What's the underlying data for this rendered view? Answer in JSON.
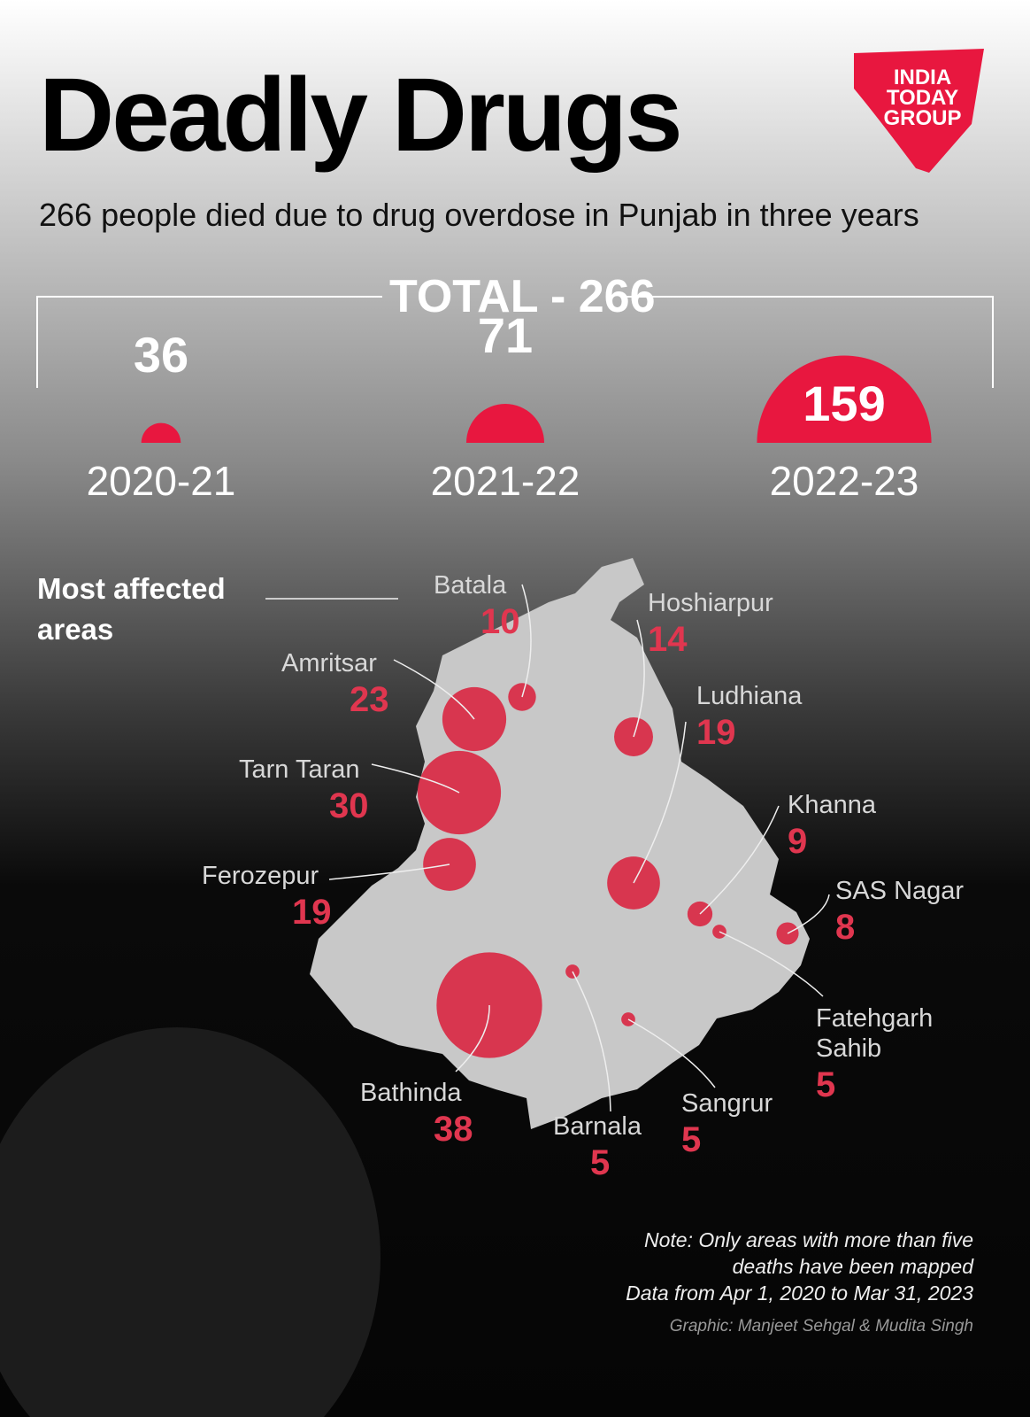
{
  "header": {
    "title": "Deadly Drugs",
    "subtitle": "266 people died due to drug overdose in Punjab in three years",
    "logo": [
      "INDIA",
      "TODAY",
      "GROUP"
    ]
  },
  "chart_data": [
    {
      "type": "semicircle",
      "title": "TOTAL - 266",
      "color": "#e8173f",
      "categories": [
        "2020-21",
        "2021-22",
        "2022-23"
      ],
      "values": [
        36,
        71,
        159
      ]
    },
    {
      "type": "bubble-map",
      "title": "Most affected areas",
      "color": "#d92944",
      "categories": [
        "Batala",
        "Hoshiarpur",
        "Amritsar",
        "Ludhiana",
        "Tarn Taran",
        "Khanna",
        "Ferozepur",
        "SAS Nagar",
        "Fatehgarh Sahib",
        "Bathinda",
        "Sangrur",
        "Barnala"
      ],
      "values": [
        10,
        14,
        23,
        19,
        30,
        9,
        19,
        8,
        5,
        38,
        5,
        5
      ]
    }
  ],
  "footer": {
    "note": "Note: Only areas with more than five deaths have been mapped",
    "period": "Data from Apr 1, 2020 to Mar 31, 2023",
    "credit": "Graphic: Manjeet Sehgal & Mudita Singh"
  }
}
